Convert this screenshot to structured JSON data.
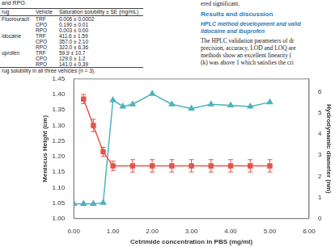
{
  "page": {
    "table_caption_top": "and RPO.",
    "table": {
      "header": [
        "rug",
        "Vehicle",
        "Saturation solubility ± SE (mg/mL)"
      ],
      "rows": [
        [
          "Fluorouracil",
          "TRF",
          "0.006 ± 0.0002"
        ],
        [
          null,
          "CPO",
          "0.190 ± 0.01"
        ],
        [
          null,
          "RPO",
          "0.003 ± 0.00"
        ],
        [
          "idocaine",
          "TRF",
          "411.6 ± 1.59"
        ],
        [
          null,
          "CPO",
          "357.0 ± 2.10"
        ],
        [
          null,
          "RPO",
          "322.0 ± 6.36"
        ],
        [
          "uprofen",
          "TRF",
          "59.9 ± 10.7"
        ],
        [
          null,
          "CPO",
          "129.0 ± 1.2"
        ],
        [
          null,
          "RPO",
          "141.0 ± 0.39"
        ]
      ]
    },
    "table_note": "rug solubility in all three vehicles (n = 3).",
    "text": {
      "first_line": "ered significant.",
      "heading": "Results and discussion",
      "subheading_lines": [
        "HPLC method development and valid",
        "lidocaine and ibuprofen"
      ],
      "paragraph_lines": [
        "The HPLC validation parameters of dr",
        "precision, accuracy, LOD and LOQ are",
        "methods show an excellent linearity (",
        "(k) was above 1 which satisfies the cri"
      ]
    }
  },
  "chart_data": {
    "type": "line",
    "x_label": "Cetrimide concentration in PBS (mg/ml)",
    "y_label": "Meniscus Height (cm)",
    "y2_label": "Hydrodynamic diameter (nm)",
    "xlim": [
      0,
      6
    ],
    "xticks": [
      {
        "value": 0,
        "label": "0.00"
      },
      {
        "value": 1,
        "label": "1.00"
      },
      {
        "value": 2,
        "label": "2.00"
      },
      {
        "value": 3,
        "label": "3.00"
      },
      {
        "value": 4,
        "label": "4.00"
      },
      {
        "value": 5,
        "label": "5.00"
      },
      {
        "value": 6,
        "label": "6.00"
      }
    ],
    "ylim": [
      1.0,
      1.45
    ],
    "yticks": [
      {
        "value": 1.0,
        "label": "1.00"
      },
      {
        "value": 1.05,
        "label": "1.05"
      },
      {
        "value": 1.1,
        "label": "1.10"
      },
      {
        "value": 1.15,
        "label": "1.15"
      },
      {
        "value": 1.2,
        "label": "1.20"
      },
      {
        "value": 1.25,
        "label": "1.25"
      },
      {
        "value": 1.3,
        "label": "1.30"
      },
      {
        "value": 1.35,
        "label": "1.35"
      },
      {
        "value": 1.4,
        "label": "1.40"
      },
      {
        "value": 1.45,
        "label": "1.45"
      }
    ],
    "y2lim": [
      0,
      6.6
    ],
    "y2ticks": [
      0,
      1,
      2,
      3,
      4,
      5,
      6
    ],
    "grid": false,
    "series": [
      {
        "color": "#e5534b",
        "marker": "square",
        "line_style": "solid",
        "axis": "y",
        "x": [
          0.25,
          0.5,
          0.75,
          1.0,
          1.5,
          2.0,
          2.5,
          3.0,
          3.5,
          4.0,
          4.5,
          5.0
        ],
        "values": [
          1.385,
          1.3,
          1.215,
          1.17,
          1.17,
          1.17,
          1.17,
          1.17,
          1.17,
          1.17,
          1.17,
          1.17
        ],
        "errors": [
          0.015,
          0.02,
          0.015,
          0.015,
          0.02,
          0.02,
          0.02,
          0.02,
          0.02,
          0.02,
          0.02,
          0.02
        ]
      },
      {
        "color": "#4bb3bd",
        "marker": "triangle",
        "line_style": "solid",
        "axis": "y2",
        "x": [
          0,
          0.25,
          0.5,
          0.75,
          1.0,
          1.25,
          1.5,
          2.0,
          2.5,
          3.0,
          3.5,
          4.0,
          4.5,
          5.0
        ],
        "values": [
          0.7,
          0.7,
          0.7,
          0.75,
          5.6,
          5.3,
          5.4,
          5.9,
          5.4,
          5.2,
          5.4,
          5.35,
          5.3,
          5.5
        ]
      }
    ]
  }
}
